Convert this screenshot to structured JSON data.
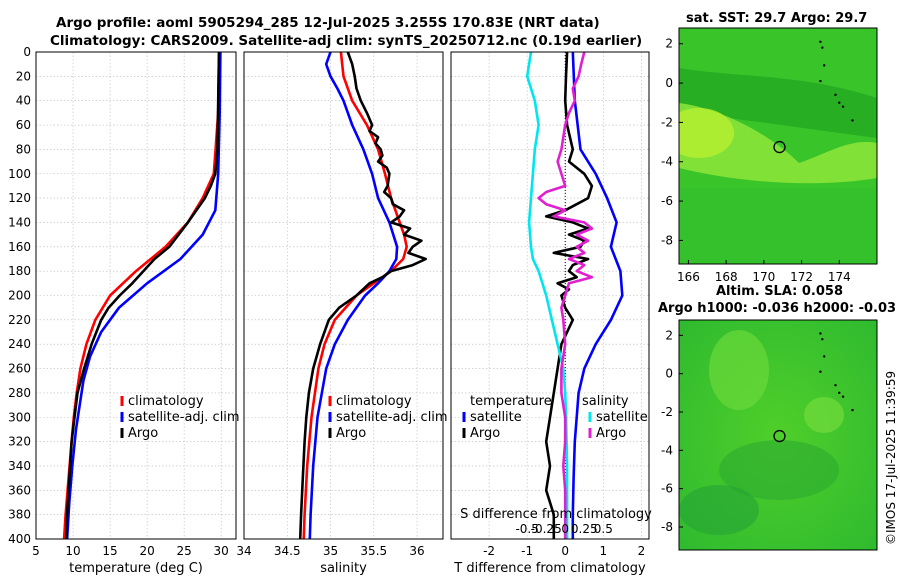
{
  "title_line1": "Argo profile: aoml 5905294_285 12-Jul-2025 3.255S 170.83E (NRT data)",
  "title_line2": "Climatology: CARS2009. Satellite-adj clim: synTS_20250712.nc (0.19d earlier)",
  "watermark": "©IMOS 17-Jul-2025 11:39:59",
  "colors": {
    "climatology": "#ff0000",
    "satellite": "#0000ff",
    "argo": "#000000",
    "sal_satellite": "#00e5ee",
    "sal_argo": "#e020d0",
    "map_green": "#33cc33"
  },
  "chart_data": [
    {
      "type": "line",
      "id": "temperature",
      "xlabel": "temperature (deg C)",
      "xlim": [
        5,
        32
      ],
      "ylim": [
        0,
        400
      ],
      "xticks": [
        5,
        10,
        15,
        20,
        25,
        30
      ],
      "yticks": [
        0,
        20,
        40,
        60,
        80,
        100,
        120,
        140,
        160,
        180,
        200,
        220,
        240,
        260,
        280,
        300,
        320,
        340,
        360,
        380,
        400
      ],
      "legend": [
        "climatology",
        "satellite-adj. clim",
        "Argo"
      ],
      "series": [
        {
          "name": "climatology",
          "color": "#ff0000",
          "depth": [
            0,
            50,
            100,
            120,
            140,
            160,
            180,
            200,
            220,
            240,
            260,
            280,
            300,
            320,
            350,
            380,
            400
          ],
          "values": [
            29.7,
            29.6,
            29.0,
            27.5,
            25.5,
            22.5,
            18.5,
            15.0,
            13.0,
            11.8,
            11.0,
            10.5,
            10.1,
            9.8,
            9.4,
            9.0,
            8.8
          ]
        },
        {
          "name": "satellite-adj. clim",
          "color": "#0000ff",
          "depth": [
            0,
            50,
            100,
            130,
            150,
            170,
            190,
            210,
            230,
            250,
            270,
            290,
            310,
            340,
            370,
            400
          ],
          "values": [
            29.9,
            29.8,
            29.6,
            29.2,
            27.5,
            24.5,
            20.0,
            16.2,
            13.8,
            12.3,
            11.4,
            10.9,
            10.4,
            9.9,
            9.5,
            9.2
          ]
        },
        {
          "name": "Argo",
          "color": "#000000",
          "depth": [
            0,
            40,
            80,
            100,
            110,
            120,
            140,
            160,
            170,
            180,
            190,
            200,
            210,
            220,
            240,
            260,
            280,
            300,
            320,
            340,
            360,
            380,
            400
          ],
          "values": [
            29.7,
            29.6,
            29.5,
            29.2,
            28.6,
            27.8,
            25.5,
            23.0,
            21.0,
            19.5,
            18.0,
            16.3,
            14.8,
            13.8,
            12.5,
            11.5,
            10.6,
            10.2,
            9.8,
            9.6,
            9.4,
            9.2,
            9.1
          ]
        }
      ]
    },
    {
      "type": "line",
      "id": "salinity",
      "xlabel": "salinity",
      "xlim": [
        34,
        36.3
      ],
      "ylim": [
        0,
        400
      ],
      "xticks": [
        34,
        34.5,
        35,
        35.5,
        36
      ],
      "legend": [
        "climatology",
        "satellite-adj. clim",
        "Argo"
      ],
      "series": [
        {
          "name": "climatology",
          "color": "#ff0000",
          "depth": [
            0,
            20,
            40,
            60,
            80,
            100,
            120,
            140,
            150,
            160,
            170,
            180,
            190,
            200,
            220,
            240,
            260,
            300,
            340,
            380,
            400
          ],
          "values": [
            35.12,
            35.15,
            35.25,
            35.42,
            35.55,
            35.63,
            35.7,
            35.8,
            35.85,
            35.88,
            35.84,
            35.7,
            35.5,
            35.3,
            35.05,
            34.93,
            34.86,
            34.78,
            34.73,
            34.7,
            34.69
          ]
        },
        {
          "name": "satellite-adj. clim",
          "color": "#0000ff",
          "depth": [
            0,
            10,
            20,
            30,
            40,
            60,
            80,
            100,
            120,
            140,
            160,
            170,
            180,
            190,
            200,
            220,
            240,
            260,
            300,
            340,
            380,
            400
          ],
          "values": [
            35.0,
            34.95,
            35.0,
            35.08,
            35.15,
            35.25,
            35.38,
            35.48,
            35.55,
            35.68,
            35.77,
            35.76,
            35.68,
            35.55,
            35.4,
            35.2,
            35.05,
            34.95,
            34.85,
            34.8,
            34.77,
            34.76
          ]
        },
        {
          "name": "Argo",
          "color": "#000000",
          "depth": [
            0,
            10,
            20,
            30,
            40,
            50,
            60,
            65,
            70,
            75,
            80,
            85,
            90,
            95,
            100,
            110,
            115,
            120,
            125,
            130,
            135,
            140,
            145,
            150,
            155,
            160,
            165,
            170,
            175,
            180,
            185,
            190,
            200,
            210,
            220,
            240,
            260,
            280,
            300,
            320,
            350,
            380,
            400
          ],
          "values": [
            35.2,
            35.25,
            35.28,
            35.3,
            35.35,
            35.42,
            35.48,
            35.45,
            35.55,
            35.52,
            35.58,
            35.6,
            35.55,
            35.65,
            35.68,
            35.66,
            35.62,
            35.7,
            35.72,
            35.85,
            35.8,
            35.7,
            35.92,
            35.85,
            36.05,
            35.95,
            35.9,
            36.1,
            35.95,
            35.7,
            35.6,
            35.45,
            35.3,
            35.1,
            34.98,
            34.88,
            34.8,
            34.75,
            34.72,
            34.7,
            34.68,
            34.66,
            34.65
          ]
        }
      ]
    },
    {
      "type": "line",
      "id": "differences",
      "xlabel": "T difference from climatology",
      "xlabel_top": "S difference from climatology",
      "xlim": [
        -3,
        2.2
      ],
      "ylim": [
        0,
        400
      ],
      "xticks": [
        -2,
        -1,
        0,
        1,
        2
      ],
      "xticks_top_labels": [
        "-0.5",
        "-0.25",
        "0",
        "0.25",
        "0.5"
      ],
      "xticks_top_values": [
        -1,
        -0.5,
        0,
        0.5,
        1
      ],
      "legend_temperature_title": "temperature",
      "legend_salinity_title": "salinity",
      "legend": [
        "satellite",
        "Argo",
        "satellite",
        "Argo"
      ],
      "series": [
        {
          "name": "temperature satellite",
          "color": "#0000ff",
          "depth": [
            0,
            40,
            80,
            100,
            120,
            140,
            160,
            180,
            200,
            220,
            240,
            260,
            280,
            300,
            320,
            350,
            380,
            400
          ],
          "values": [
            0.2,
            0.25,
            0.4,
            0.8,
            1.1,
            1.35,
            1.2,
            1.45,
            1.5,
            1.2,
            0.8,
            0.5,
            0.35,
            0.3,
            0.25,
            0.22,
            0.2,
            0.2
          ]
        },
        {
          "name": "temperature Argo",
          "color": "#000000",
          "depth": [
            0,
            20,
            40,
            60,
            80,
            90,
            100,
            110,
            120,
            125,
            130,
            135,
            140,
            145,
            150,
            155,
            160,
            165,
            170,
            175,
            180,
            185,
            190,
            195,
            200,
            210,
            220,
            240,
            260,
            280,
            300,
            320,
            340,
            360,
            380,
            400
          ],
          "values": [
            0.05,
            0.02,
            0.0,
            0.05,
            0.2,
            0.1,
            0.5,
            0.7,
            0.6,
            0.3,
            0.0,
            -0.5,
            0.2,
            0.6,
            0.1,
            0.5,
            0.4,
            -0.3,
            0.6,
            0.2,
            0.1,
            0.3,
            -0.2,
            0.1,
            -0.1,
            0.0,
            0.2,
            -0.1,
            -0.2,
            -0.3,
            -0.4,
            -0.5,
            -0.4,
            -0.5,
            -0.3,
            -0.3
          ]
        },
        {
          "name": "salinity satellite",
          "color": "#00e5ee",
          "depth": [
            0,
            20,
            40,
            60,
            80,
            100,
            120,
            140,
            160,
            170,
            180,
            200,
            220,
            240,
            260,
            280,
            300,
            340,
            380,
            400
          ],
          "values": [
            -0.9,
            -1.0,
            -0.8,
            -0.7,
            -0.8,
            -0.85,
            -0.9,
            -0.95,
            -0.9,
            -0.85,
            -0.7,
            -0.5,
            -0.35,
            -0.2,
            -0.05,
            0.0,
            0.02,
            0.05,
            0.05,
            0.05
          ]
        },
        {
          "name": "salinity Argo",
          "color": "#e020d0",
          "depth": [
            0,
            10,
            20,
            30,
            40,
            50,
            60,
            70,
            80,
            90,
            100,
            110,
            115,
            120,
            125,
            130,
            135,
            140,
            145,
            150,
            155,
            160,
            165,
            170,
            175,
            180,
            185,
            190,
            200,
            210,
            220,
            240,
            260,
            280,
            300,
            320,
            340,
            360,
            380,
            400
          ],
          "values": [
            0.5,
            0.42,
            0.35,
            0.2,
            0.25,
            0.1,
            0.0,
            -0.05,
            -0.1,
            -0.2,
            -0.1,
            0.0,
            -0.5,
            -0.7,
            -0.5,
            0.0,
            -0.3,
            0.5,
            0.7,
            0.3,
            0.6,
            0.3,
            0.5,
            0.1,
            0.5,
            0.3,
            0.7,
            0.1,
            0.0,
            -0.1,
            -0.05,
            0.0,
            -0.1,
            -0.1,
            0.0,
            0.0,
            -0.05,
            0.0,
            0.0,
            0.0
          ]
        }
      ]
    },
    {
      "type": "heatmap",
      "id": "sst-map",
      "title": "sat. SST: 29.7 Argo: 29.7",
      "xlim": [
        165.5,
        176
      ],
      "ylim": [
        -9.2,
        2.8
      ],
      "xticks": [
        166,
        168,
        170,
        172,
        174
      ],
      "yticks": [
        2,
        0,
        -2,
        -4,
        -6,
        -8
      ],
      "marker": {
        "lon": 170.83,
        "lat": -3.255
      }
    },
    {
      "type": "heatmap",
      "id": "sla-map",
      "title": "Altim. SLA: 0.058",
      "subtitle": "Argo h1000: -0.036 h2000: -0.03",
      "xlim": [
        165.5,
        176
      ],
      "ylim": [
        -9.2,
        2.8
      ],
      "yticks": [
        2,
        0,
        -2,
        -4,
        -6,
        -8
      ],
      "marker": {
        "lon": 170.83,
        "lat": -3.255
      }
    }
  ]
}
